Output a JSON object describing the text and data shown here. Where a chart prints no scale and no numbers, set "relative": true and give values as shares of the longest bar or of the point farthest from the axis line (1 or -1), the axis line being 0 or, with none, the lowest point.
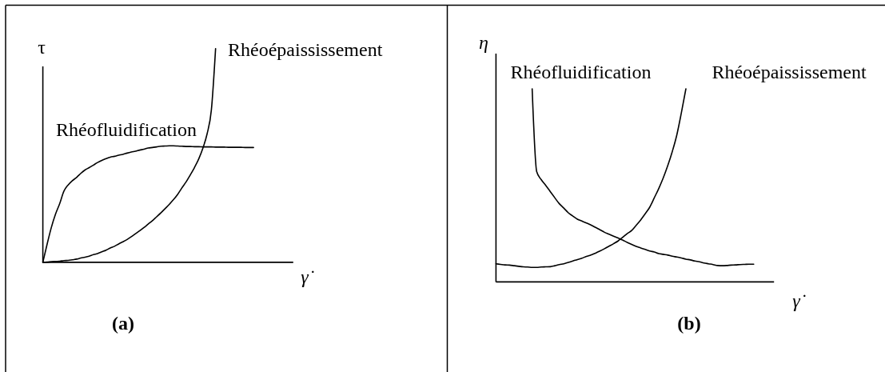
{
  "chart_data": [
    {
      "type": "line",
      "relative": true,
      "xlabel": "γ̇",
      "ylabel": "τ",
      "annotations": [
        "(a)"
      ],
      "categories": [
        null,
        null,
        null,
        null,
        null,
        null,
        null,
        null,
        null,
        null,
        null,
        null,
        null,
        null,
        null,
        null,
        null,
        null,
        null,
        null,
        null,
        null,
        null,
        null,
        null,
        null,
        null,
        null,
        null,
        null,
        null,
        null,
        null,
        null,
        null,
        null,
        null,
        null,
        null,
        null,
        null,
        null,
        null,
        null,
        null,
        null,
        null,
        null,
        null,
        null,
        null
      ],
      "series": [
        {
          "name": "Rhéofluidification",
          "color": "#000000",
          "values": [
            0,
            0.084,
            0.162,
            0.225,
            0.275,
            0.333,
            0.362,
            0.382,
            0.397,
            0.416,
            0.432,
            0.443,
            0.455,
            0.467,
            0.477,
            0.485,
            0.492,
            0.496,
            0.501,
            0.505,
            0.511,
            0.516,
            0.52,
            0.525,
            0.529,
            0.535,
            0.537,
            0.54,
            0.543,
            0.544,
            0.545,
            0.545,
            0.544,
            0.543,
            0.542,
            0.542,
            0.541,
            0.541,
            0.54,
            0.54,
            0.54,
            0.539,
            0.539,
            0.539,
            0.538,
            0.538,
            0.538,
            0.538,
            0.537,
            0.537,
            0.537
          ]
        },
        {
          "name": "Rhéoépaississement",
          "color": "#000000",
          "values": [
            0,
            0.001,
            0.003,
            0.004,
            0.005,
            0.008,
            0.009,
            0.012,
            0.015,
            0.02,
            0.024,
            0.029,
            0.036,
            0.041,
            0.049,
            0.057,
            0.067,
            0.075,
            0.086,
            0.096,
            0.107,
            0.12,
            0.134,
            0.148,
            0.163,
            0.179,
            0.195,
            0.213,
            0.231,
            0.251,
            0.271,
            0.293,
            0.318,
            0.348,
            0.376,
            0.409,
            0.444,
            0.484,
            0.535,
            0.602,
            0.713,
            1,
            null,
            null,
            null,
            null,
            null,
            null,
            null,
            null,
            null
          ]
        }
      ]
    },
    {
      "type": "line",
      "relative": true,
      "xlabel": "γ̇",
      "ylabel": "η",
      "annotations": [
        "(b)"
      ],
      "categories": [
        null,
        null,
        null,
        null,
        null,
        null,
        null,
        null,
        null,
        null,
        null,
        null,
        null,
        null,
        null,
        null,
        null,
        null,
        null,
        null,
        null,
        null,
        null,
        null,
        null,
        null,
        null,
        null,
        null,
        null,
        null,
        null,
        null,
        null,
        null,
        null,
        null,
        null,
        null,
        null,
        null,
        null,
        null,
        null,
        null,
        null,
        null,
        null,
        null,
        null,
        null,
        null,
        null,
        null,
        null,
        null,
        null,
        null
      ],
      "series": [
        {
          "name": "Rhéofluidification",
          "color": "#000000",
          "values": [
            null,
            null,
            null,
            null,
            null,
            null,
            null,
            null,
            1,
            0.571,
            0.53,
            0.5,
            0.468,
            0.436,
            0.405,
            0.382,
            0.358,
            0.341,
            0.325,
            0.315,
            0.305,
            0.295,
            0.282,
            0.27,
            0.257,
            0.247,
            0.237,
            0.227,
            0.217,
            0.205,
            0.194,
            0.184,
            0.176,
            0.168,
            0.16,
            0.155,
            0.147,
            0.143,
            0.139,
            0.133,
            0.129,
            0.124,
            0.118,
            0.114,
            0.108,
            0.104,
            0.098,
            0.094,
            0.09,
            0.085,
            0.084,
            0.085,
            0.087,
            0.088,
            0.09,
            0.091,
            0.092,
            0.092
          ]
        },
        {
          "name": "Rhéoépaississement",
          "color": "#000000",
          "values": [
            0.094,
            0.091,
            0.088,
            0.087,
            0.084,
            0.081,
            0.078,
            0.077,
            0.075,
            0.075,
            0.077,
            0.078,
            0.079,
            0.084,
            0.09,
            0.094,
            0.101,
            0.108,
            0.116,
            0.123,
            0.132,
            0.139,
            0.149,
            0.16,
            0.172,
            0.185,
            0.198,
            0.212,
            0.231,
            0.25,
            0.266,
            0.293,
            0.321,
            0.353,
            0.387,
            0.435,
            0.484,
            0.539,
            0.603,
            0.676,
            0.762,
            0.876,
            1,
            null,
            null,
            null,
            null,
            null,
            null,
            null,
            null,
            null,
            null,
            null,
            null,
            null,
            null,
            null
          ]
        }
      ]
    }
  ]
}
